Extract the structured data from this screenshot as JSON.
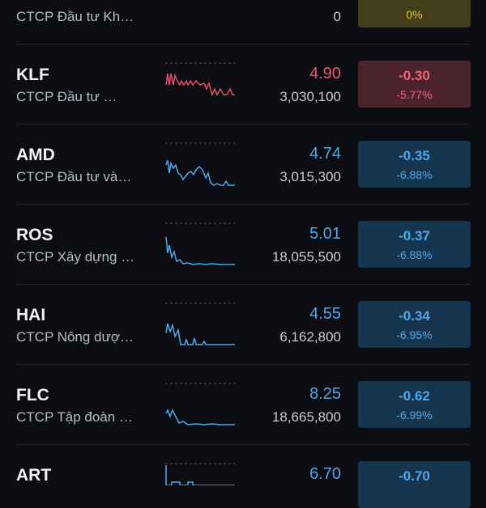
{
  "rows": [
    {
      "name": "CTCP Đầu tư Kh…",
      "volume": "0",
      "pct": "0%",
      "tone": "flat"
    },
    {
      "ticker": "KLF",
      "name": "CTCP Đầu tư …",
      "price": "4.90",
      "volume": "3,030,100",
      "change": "-0.30",
      "pct": "-5.77%",
      "tone": "red"
    },
    {
      "ticker": "AMD",
      "name": "CTCP Đầu tư và…",
      "price": "4.74",
      "volume": "3,015,300",
      "change": "-0.35",
      "pct": "-6.88%",
      "tone": "blue"
    },
    {
      "ticker": "ROS",
      "name": "CTCP Xây dựng …",
      "price": "5.01",
      "volume": "18,055,500",
      "change": "-0.37",
      "pct": "-6.88%",
      "tone": "blue"
    },
    {
      "ticker": "HAI",
      "name": "CTCP Nông dượ…",
      "price": "4.55",
      "volume": "6,162,800",
      "change": "-0.34",
      "pct": "-6.95%",
      "tone": "blue"
    },
    {
      "ticker": "FLC",
      "name": "CTCP Tập đoàn …",
      "price": "8.25",
      "volume": "18,665,800",
      "change": "-0.62",
      "pct": "-6.99%",
      "tone": "blue"
    },
    {
      "ticker": "ART",
      "price": "6.70",
      "change": "-0.70",
      "tone": "blue"
    }
  ]
}
